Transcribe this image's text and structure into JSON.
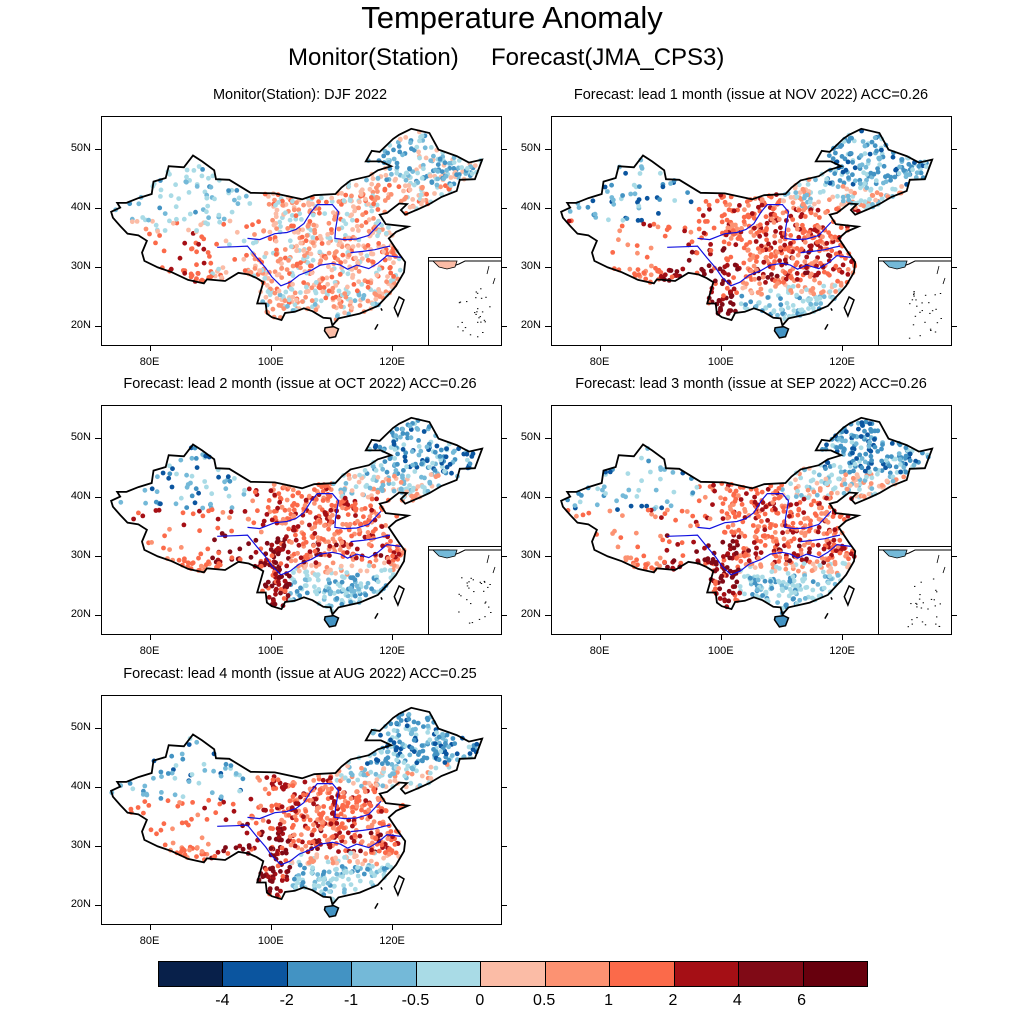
{
  "title": "Temperature Anomaly",
  "subtitle_monitor": "Monitor(Station)",
  "subtitle_forecast": "Forecast(JMA_CPS3)",
  "latitude_labels": [
    "50N",
    "40N",
    "30N",
    "20N"
  ],
  "longitude_labels": [
    "80E",
    "100E",
    "120E"
  ],
  "panels": [
    {
      "title": "Monitor(Station): DJF 2022",
      "pattern": "monitor"
    },
    {
      "title": "Forecast: lead 1 month (issue at NOV 2022) ACC=0.26",
      "pattern": "lead1"
    },
    {
      "title": "Forecast: lead 2 month (issue at OCT 2022) ACC=0.26",
      "pattern": "lead2"
    },
    {
      "title": "Forecast: lead 3 month (issue at SEP 2022) ACC=0.26",
      "pattern": "lead3"
    },
    {
      "title": "Forecast: lead 4 month (issue at AUG 2022) ACC=0.25",
      "pattern": "lead4"
    }
  ],
  "colorbar": {
    "labels": [
      "-4",
      "-2",
      "-1",
      "-0.5",
      "0",
      "0.5",
      "1",
      "2",
      "4",
      "6"
    ],
    "colors": [
      "#08204a",
      "#0b559f",
      "#4393c3",
      "#74b9d8",
      "#a9dbe6",
      "#fbbca6",
      "#fc9272",
      "#fb6a4a",
      "#a50f15",
      "#800a16",
      "#67000d"
    ]
  }
}
